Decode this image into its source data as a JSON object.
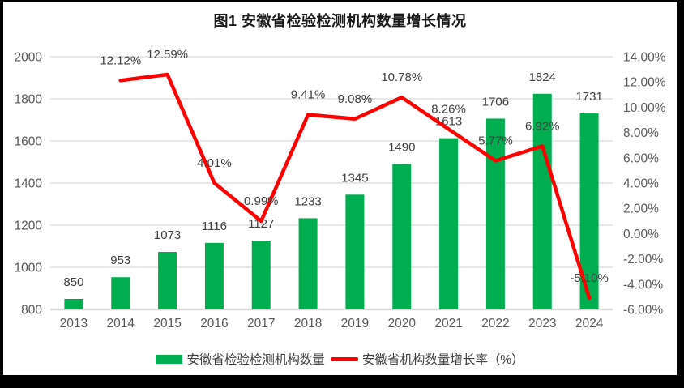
{
  "title": "图1 安徽省检验检测机构数量增长情况",
  "legend": {
    "items": [
      {
        "label": "安徽省检验检测机构数量",
        "marker": "bar",
        "color": "#00AE50"
      },
      {
        "label": "安徽省机构数量增长率（%）",
        "marker": "line",
        "color": "#FF0000"
      }
    ],
    "position": "bottom"
  },
  "style": {
    "bar_color": "#00AE50",
    "line_color": "#FF0000",
    "grid_color": "#D9D9D9",
    "axis_line_color": "#D9D9D9",
    "tick_text_color": "#595959",
    "data_label_color": "#404040",
    "title_color": "#1A1A1A",
    "frame_color": "#000000",
    "background_color": "#FFFFFF"
  },
  "chart_data": {
    "type": "bar",
    "subtype": "bar+line combo, dual axis",
    "title": "图1 安徽省检验检测机构数量增长情况",
    "xlabel": "",
    "ylabel_left": "",
    "ylabel_right": "",
    "grid": true,
    "legend_position": "bottom",
    "categories": [
      "2013",
      "2014",
      "2015",
      "2016",
      "2017",
      "2018",
      "2019",
      "2020",
      "2021",
      "2022",
      "2023",
      "2024"
    ],
    "series": [
      {
        "name": "安徽省检验检测机构数量",
        "type": "bar",
        "axis": "left",
        "color": "#00AE50",
        "values": [
          850,
          953,
          1073,
          1116,
          1127,
          1233,
          1345,
          1490,
          1613,
          1706,
          1824,
          1731
        ],
        "labels": [
          "850",
          "953",
          "1073",
          "1116",
          "1127",
          "1233",
          "1345",
          "1490",
          "1613",
          "1706",
          "1824",
          "1731"
        ]
      },
      {
        "name": "安徽省机构数量增长率（%）",
        "type": "line",
        "axis": "right",
        "color": "#FF0000",
        "values": [
          null,
          12.12,
          12.59,
          4.01,
          0.99,
          9.41,
          9.08,
          10.78,
          8.26,
          5.77,
          6.92,
          -5.1
        ],
        "labels": [
          null,
          "12.12%",
          "12.59%",
          "4.01%",
          "0.99%",
          "9.41%",
          "9.08%",
          "10.78%",
          "8.26%",
          "5.77%",
          "6.92%",
          "-5.10%"
        ]
      }
    ],
    "left_axis": {
      "min": 800,
      "max": 2000,
      "step": 200,
      "tick_labels": [
        "800",
        "1000",
        "1200",
        "1400",
        "1600",
        "1800",
        "2000"
      ]
    },
    "right_axis": {
      "min": -6,
      "max": 14,
      "step": 2,
      "tick_labels": [
        "-6.00%",
        "-4.00%",
        "-2.00%",
        "0.00%",
        "2.00%",
        "4.00%",
        "6.00%",
        "8.00%",
        "10.00%",
        "12.00%",
        "14.00%"
      ]
    }
  }
}
